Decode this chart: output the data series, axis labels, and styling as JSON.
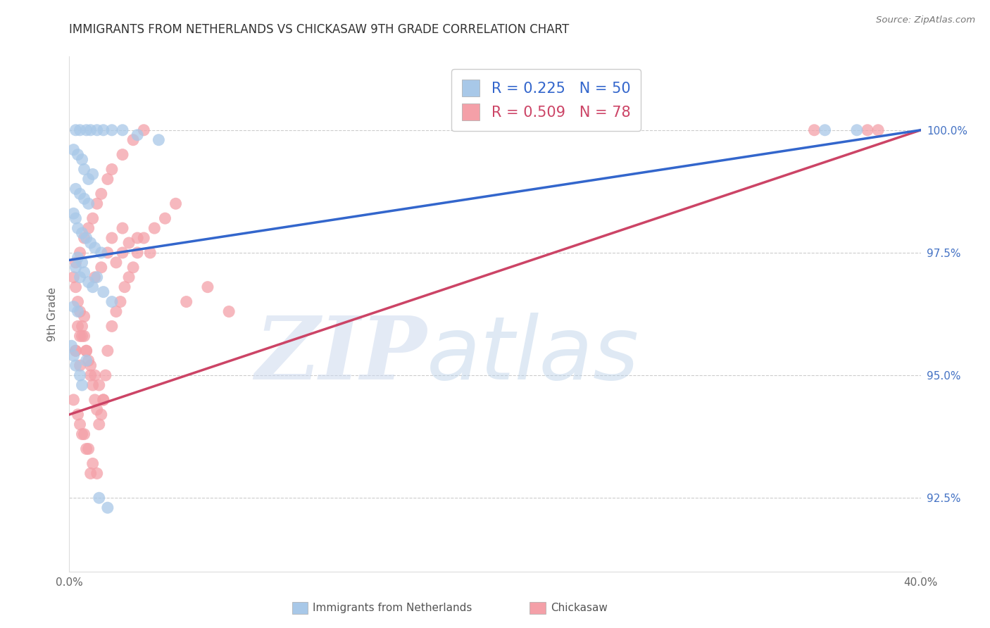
{
  "title": "IMMIGRANTS FROM NETHERLANDS VS CHICKASAW 9TH GRADE CORRELATION CHART",
  "source": "Source: ZipAtlas.com",
  "ylabel_label": "9th Grade",
  "yaxis_ticks": [
    92.5,
    95.0,
    97.5,
    100.0
  ],
  "yaxis_labels": [
    "92.5%",
    "95.0%",
    "97.5%",
    "100.0%"
  ],
  "xlim": [
    0.0,
    40.0
  ],
  "ylim": [
    91.0,
    101.5
  ],
  "blue_R": 0.225,
  "blue_N": 50,
  "pink_R": 0.509,
  "pink_N": 78,
  "blue_color": "#a8c8e8",
  "pink_color": "#f4a0a8",
  "blue_line_color": "#3366cc",
  "pink_line_color": "#cc4466",
  "legend_label_blue": "Immigrants from Netherlands",
  "legend_label_pink": "Chickasaw",
  "watermark_zip": "ZIP",
  "watermark_atlas": "atlas",
  "blue_line_x0": 0.0,
  "blue_line_y0": 97.35,
  "blue_line_x1": 40.0,
  "blue_line_y1": 100.0,
  "pink_line_x0": 0.0,
  "pink_line_y0": 94.2,
  "pink_line_x1": 40.0,
  "pink_line_y1": 100.0,
  "blue_scatter_x": [
    0.3,
    0.5,
    0.8,
    1.0,
    1.3,
    1.6,
    2.0,
    2.5,
    3.2,
    4.2,
    0.2,
    0.4,
    0.6,
    0.7,
    0.9,
    1.1,
    0.3,
    0.5,
    0.7,
    0.9,
    0.2,
    0.3,
    0.4,
    0.6,
    0.8,
    1.0,
    1.2,
    1.5,
    0.4,
    0.6,
    0.3,
    0.5,
    0.7,
    0.9,
    1.1,
    1.3,
    1.6,
    2.0,
    0.2,
    0.4,
    0.1,
    0.2,
    0.3,
    0.5,
    0.8,
    0.6,
    1.4,
    1.8,
    35.5,
    37.0
  ],
  "blue_scatter_y": [
    100.0,
    100.0,
    100.0,
    100.0,
    100.0,
    100.0,
    100.0,
    100.0,
    99.9,
    99.8,
    99.6,
    99.5,
    99.4,
    99.2,
    99.0,
    99.1,
    98.8,
    98.7,
    98.6,
    98.5,
    98.3,
    98.2,
    98.0,
    97.9,
    97.8,
    97.7,
    97.6,
    97.5,
    97.4,
    97.3,
    97.2,
    97.0,
    97.1,
    96.9,
    96.8,
    97.0,
    96.7,
    96.5,
    96.4,
    96.3,
    95.6,
    95.4,
    95.2,
    95.0,
    95.3,
    94.8,
    92.5,
    92.3,
    100.0,
    100.0
  ],
  "pink_scatter_x": [
    0.2,
    0.3,
    0.4,
    0.5,
    0.6,
    0.7,
    0.8,
    0.9,
    1.0,
    1.1,
    1.2,
    1.3,
    1.4,
    1.5,
    1.6,
    1.7,
    1.8,
    2.0,
    2.2,
    2.4,
    2.6,
    2.8,
    3.0,
    3.2,
    3.5,
    4.0,
    4.5,
    5.0,
    0.3,
    0.5,
    0.7,
    0.9,
    1.1,
    1.3,
    1.5,
    1.8,
    2.0,
    2.5,
    3.0,
    3.5,
    0.4,
    0.6,
    0.8,
    1.0,
    1.2,
    1.4,
    1.6,
    0.5,
    0.7,
    0.9,
    1.1,
    1.3,
    0.3,
    0.5,
    0.7,
    2.2,
    2.5,
    2.8,
    3.2,
    3.8,
    0.2,
    0.4,
    0.6,
    0.8,
    1.0,
    5.5,
    6.5,
    7.5,
    0.3,
    0.5,
    1.2,
    1.5,
    1.8,
    2.0,
    2.5,
    35.0,
    37.5,
    38.0
  ],
  "pink_scatter_y": [
    97.0,
    96.8,
    96.5,
    96.3,
    96.0,
    95.8,
    95.5,
    95.3,
    95.0,
    94.8,
    94.5,
    94.3,
    94.0,
    94.2,
    94.5,
    95.0,
    95.5,
    96.0,
    96.3,
    96.5,
    96.8,
    97.0,
    97.2,
    97.5,
    97.8,
    98.0,
    98.2,
    98.5,
    97.3,
    97.5,
    97.8,
    98.0,
    98.2,
    98.5,
    98.7,
    99.0,
    99.2,
    99.5,
    99.8,
    100.0,
    96.0,
    95.8,
    95.5,
    95.2,
    95.0,
    94.8,
    94.5,
    94.0,
    93.8,
    93.5,
    93.2,
    93.0,
    95.5,
    95.8,
    96.2,
    97.3,
    97.5,
    97.7,
    97.8,
    97.5,
    94.5,
    94.2,
    93.8,
    93.5,
    93.0,
    96.5,
    96.8,
    96.3,
    95.5,
    95.2,
    97.0,
    97.2,
    97.5,
    97.8,
    98.0,
    100.0,
    100.0,
    100.0
  ]
}
